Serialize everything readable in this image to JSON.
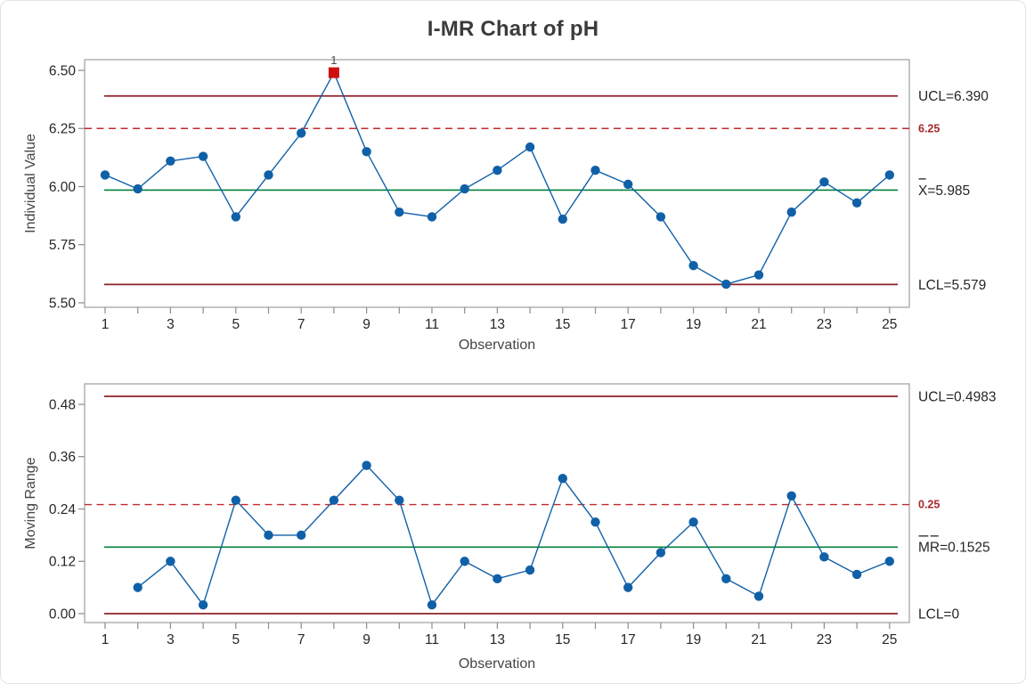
{
  "title": "I-MR Chart of pH",
  "colors": {
    "point_blue": "#1060a8",
    "line_blue": "#1060a8",
    "center_green": "#00813d",
    "limit_maroon": "#8e2227",
    "spec_red_line": "#c12b2e",
    "spec_red_label": "#a5282c",
    "flag_square_red": "#d00f10",
    "plot_border_gray": "#acacac",
    "tick_gray": "#8c8c8c",
    "tick_label_color": "#262626",
    "axis_title_color": "#454545",
    "flag_label_color": "#4a4a4a",
    "title_color": "#3c3c3c"
  },
  "chart_data": [
    {
      "type": "line",
      "name": "individual-value-chart",
      "ylabel": "Individual Value",
      "xlabel": "Observation",
      "x": [
        1,
        2,
        3,
        4,
        5,
        6,
        7,
        8,
        9,
        10,
        11,
        12,
        13,
        14,
        15,
        16,
        17,
        18,
        19,
        20,
        21,
        22,
        23,
        24,
        25
      ],
      "values": [
        6.05,
        5.99,
        6.11,
        6.13,
        5.87,
        6.05,
        6.23,
        6.49,
        6.15,
        5.89,
        5.87,
        5.99,
        6.07,
        6.17,
        5.86,
        6.07,
        6.01,
        5.87,
        5.66,
        5.58,
        5.62,
        5.89,
        6.02,
        5.93,
        6.05
      ],
      "ylim": [
        5.4808,
        6.546
      ],
      "yticks": [
        {
          "value": 6.5,
          "label": "6.50"
        },
        {
          "value": 6.25,
          "label": "6.25"
        },
        {
          "value": 6.0,
          "label": "6.00"
        },
        {
          "value": 5.75,
          "label": "5.75"
        },
        {
          "value": 5.5,
          "label": "5.50"
        }
      ],
      "xtick_labels": [
        1,
        3,
        5,
        7,
        9,
        11,
        13,
        15,
        17,
        19,
        21,
        23,
        25
      ],
      "ucl": {
        "value": 6.39,
        "label": "UCL=6.390"
      },
      "center": {
        "value": 5.985,
        "label_overline": "X",
        "label_rest": "=5.985"
      },
      "lcl": {
        "value": 5.579,
        "label": "LCL=5.579"
      },
      "spec": {
        "value": 6.25,
        "label": "6.25"
      },
      "flagged": [
        {
          "obs": 8,
          "label": "1"
        }
      ],
      "legend_position": "right-annotations",
      "grid": false
    },
    {
      "type": "line",
      "name": "moving-range-chart",
      "ylabel": "Moving Range",
      "xlabel": "Observation",
      "x": [
        1,
        2,
        3,
        4,
        5,
        6,
        7,
        8,
        9,
        10,
        11,
        12,
        13,
        14,
        15,
        16,
        17,
        18,
        19,
        20,
        21,
        22,
        23,
        24,
        25
      ],
      "values": [
        null,
        0.06,
        0.12,
        0.02,
        0.26,
        0.18,
        0.18,
        0.26,
        0.34,
        0.26,
        0.02,
        0.12,
        0.08,
        0.1,
        0.31,
        0.21,
        0.06,
        0.14,
        0.21,
        0.08,
        0.04,
        0.27,
        0.13,
        0.09,
        0.12
      ],
      "ylim": [
        -0.02043,
        0.52696
      ],
      "yticks": [
        {
          "value": 0.48,
          "label": "0.48"
        },
        {
          "value": 0.36,
          "label": "0.36"
        },
        {
          "value": 0.24,
          "label": "0.24"
        },
        {
          "value": 0.12,
          "label": "0.12"
        },
        {
          "value": 0.0,
          "label": "0.00"
        }
      ],
      "xtick_labels": [
        1,
        3,
        5,
        7,
        9,
        11,
        13,
        15,
        17,
        19,
        21,
        23,
        25
      ],
      "ucl": {
        "value": 0.4983,
        "label": "UCL=0.4983"
      },
      "center": {
        "value": 0.1525,
        "label_overline": "MR",
        "label_rest": "=0.1525"
      },
      "lcl": {
        "value": 0,
        "label": "LCL=0"
      },
      "spec": {
        "value": 0.25,
        "label": "0.25"
      },
      "flagged": [],
      "legend_position": "right-annotations",
      "grid": false
    }
  ]
}
